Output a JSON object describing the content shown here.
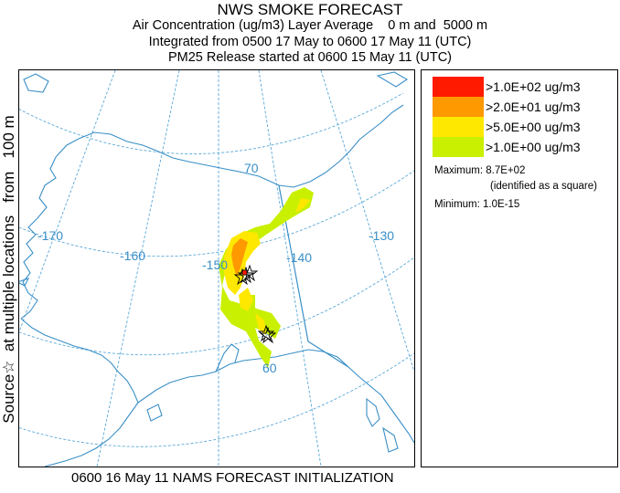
{
  "title": {
    "line1": "NWS SMOKE FORECAST",
    "line2": "Air Concentration (ug/m3) Layer Average    0 m and  5000 m",
    "line3": "Integrated from 0500 17 May to 0600 17 May 11 (UTC)",
    "line4": "PM25 Release started at 0600 15 May 11 (UTC)"
  },
  "side_label": "Source☆  at multiple locations   from   100 m",
  "footer": "0600 16 May 11 NAMS FORECAST INITIALIZATION",
  "map": {
    "longitude_labels": [
      "-170",
      "-160",
      "-150",
      "-140",
      "-130"
    ],
    "latitude_labels": [
      "70",
      "60"
    ]
  },
  "legend": {
    "entries": [
      {
        "label": ">1.0E+02 ug/m3",
        "color": "#ff1a00"
      },
      {
        "label": ">2.0E+01 ug/m3",
        "color": "#ff9900"
      },
      {
        "label": ">5.0E+00 ug/m3",
        "color": "#ffe800"
      },
      {
        "label": ">1.0E+00 ug/m3",
        "color": "#c8f000"
      }
    ],
    "maximum": "Maximum: 8.7E+02",
    "maximum_note": "(identified as a square)",
    "minimum": "Minimum: 1.0E-15"
  },
  "colors": {
    "coastline": "#3a8fc7",
    "graticule": "#5aa8d8",
    "border": "#3a8fc7"
  }
}
